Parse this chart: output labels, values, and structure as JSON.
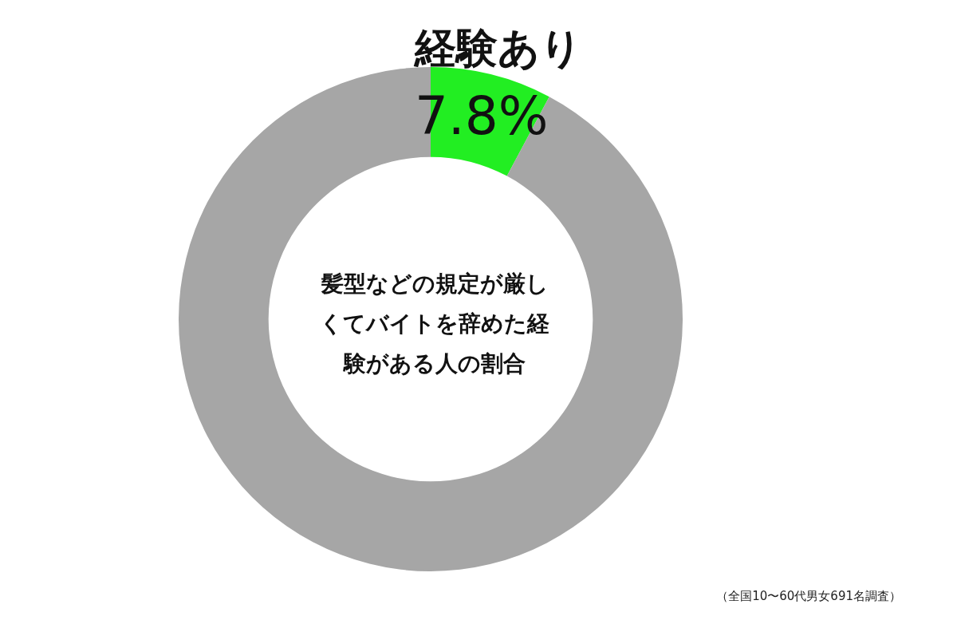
{
  "chart_data": {
    "type": "donut",
    "title": "髪型などの規定が厳しくてバイトを辞めた経験がある人の割合",
    "categories": [
      "経験あり",
      null
    ],
    "values": [
      7.8,
      92.2
    ],
    "colors": [
      "#22ee22",
      "#a6a6a6"
    ],
    "value_labels": [
      "7.8%",
      null
    ],
    "legend": false,
    "annotations": [
      "（全国10〜60代男女691名調査）"
    ]
  }
}
